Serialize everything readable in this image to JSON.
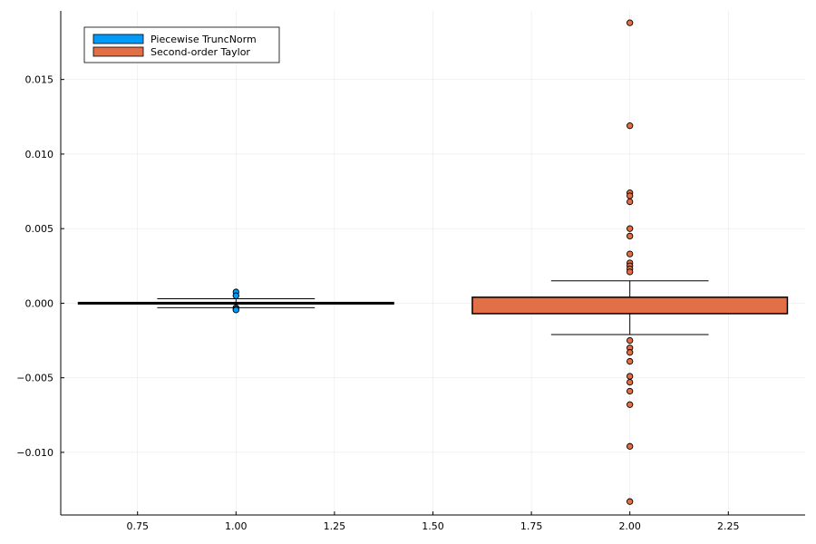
{
  "chart_data": {
    "type": "box",
    "title": "",
    "xlabel": "",
    "ylabel": "",
    "xlim": [
      0.555,
      2.445
    ],
    "ylim": [
      -0.0142,
      0.0196
    ],
    "grid": true,
    "legend_position": "top-left",
    "x_ticks": [
      {
        "value": 0.75,
        "label": "0.75"
      },
      {
        "value": 1.0,
        "label": "1.00"
      },
      {
        "value": 1.25,
        "label": "1.25"
      },
      {
        "value": 1.5,
        "label": "1.50"
      },
      {
        "value": 1.75,
        "label": "1.75"
      },
      {
        "value": 2.0,
        "label": "2.00"
      },
      {
        "value": 2.25,
        "label": "2.25"
      }
    ],
    "y_ticks": [
      {
        "value": 0.015,
        "label": "0.015"
      },
      {
        "value": 0.01,
        "label": "0.010"
      },
      {
        "value": 0.005,
        "label": "0.005"
      },
      {
        "value": 0.0,
        "label": "0.000"
      },
      {
        "value": -0.005,
        "label": "−0.005"
      },
      {
        "value": -0.01,
        "label": "−0.010"
      }
    ],
    "series": [
      {
        "name": "Piecewise TruncNorm",
        "color": "#009af9",
        "x": 1.0,
        "box_left": 0.6,
        "box_right": 1.4,
        "whisker_left": 0.8,
        "whisker_right": 1.2,
        "q1": -3e-05,
        "median": 0.0,
        "q3": 3e-05,
        "whisker_low": -0.0003,
        "whisker_high": 0.0003,
        "outliers": [
          0.00075,
          0.0005,
          -0.0003,
          -0.0004,
          -0.00045
        ]
      },
      {
        "name": "Second-order Taylor",
        "color": "#e26f46",
        "x": 2.0,
        "box_left": 1.6,
        "box_right": 2.4,
        "whisker_left": 1.8,
        "whisker_right": 2.2,
        "q1": -0.0007,
        "median": 0.0,
        "q3": 0.0004,
        "whisker_low": -0.0021,
        "whisker_high": 0.0015,
        "outliers": [
          0.0188,
          0.0119,
          0.0074,
          0.0072,
          0.0068,
          0.005,
          0.0045,
          0.0033,
          0.0027,
          0.0025,
          0.0023,
          0.0021,
          -0.0025,
          -0.003,
          -0.0033,
          -0.0039,
          -0.0049,
          -0.0053,
          -0.0059,
          -0.0068,
          -0.0096,
          -0.0133
        ]
      }
    ]
  }
}
